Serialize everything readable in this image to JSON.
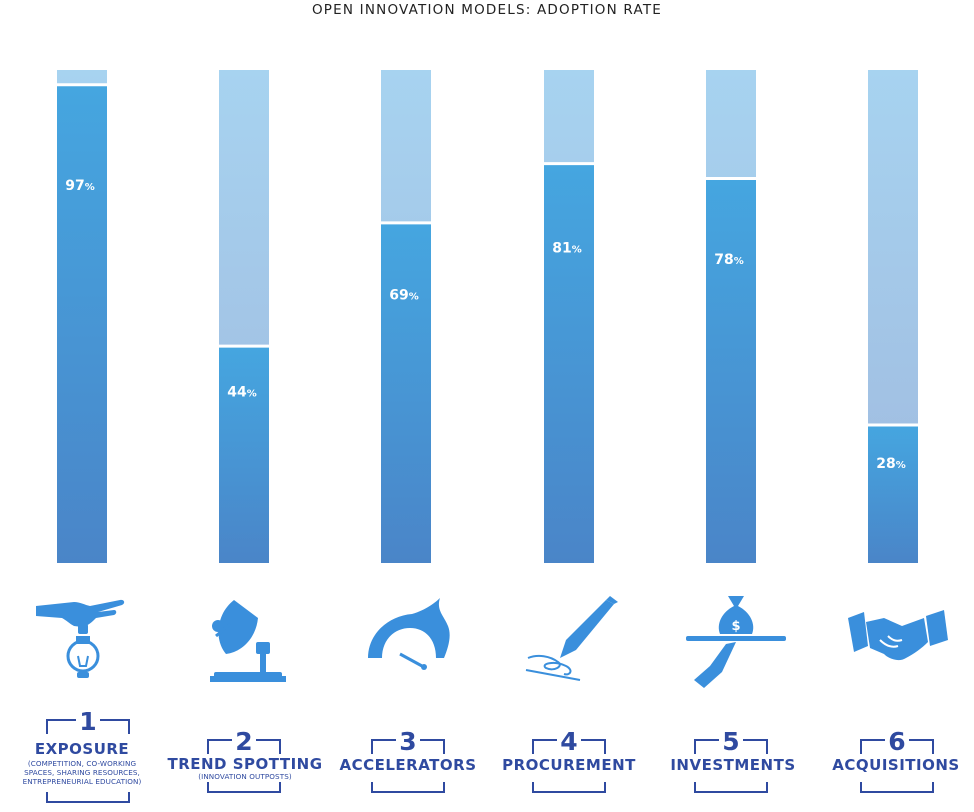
{
  "title": "OPEN INNOVATION MODELS: ADOPTION RATE",
  "colors": {
    "bar_light_top": "#a7d3f0",
    "bar_light_bottom": "#9fb9de",
    "bar_fill_top": "#45a6e0",
    "bar_fill_bottom": "#4a85c8",
    "icon_color": "#3a8fdc",
    "label_color": "#2f4aa0"
  },
  "chart_data": {
    "type": "bar",
    "title": "OPEN INNOVATION MODELS: ADOPTION RATE",
    "categories": [
      "EXPOSURE",
      "TREND SPOTTING",
      "ACCELERATORS",
      "PROCUREMENT",
      "INVESTMENTS",
      "ACQUISITIONS"
    ],
    "values": [
      97,
      44,
      69,
      81,
      78,
      28
    ],
    "value_labels": [
      "97",
      "44",
      "69",
      "81",
      "78",
      "28"
    ],
    "value_suffix": "%",
    "ylim": [
      0,
      100
    ],
    "grid": false,
    "legend": "none"
  },
  "categories": [
    {
      "number": "1",
      "label": "EXPOSURE",
      "sub": [
        "(COMPETITION, CO-WORKING",
        "SPACES, SHARING RESOURCES,",
        "ENTREPRENEURIAL EDUCATION)"
      ],
      "icon": "hand-lightbulb-icon"
    },
    {
      "number": "2",
      "label": "TREND SPOTTING",
      "sub": [
        "(INNOVATION OUTPOSTS)"
      ],
      "icon": "satellite-dish-icon"
    },
    {
      "number": "3",
      "label": "ACCELERATORS",
      "sub": [],
      "icon": "speedometer-icon"
    },
    {
      "number": "4",
      "label": "PROCUREMENT",
      "sub": [],
      "icon": "pen-signature-icon"
    },
    {
      "number": "5",
      "label": "INVESTMENTS",
      "sub": [],
      "icon": "money-bag-icon"
    },
    {
      "number": "6",
      "label": "ACQUISITIONS",
      "sub": [],
      "icon": "handshake-icon"
    }
  ]
}
